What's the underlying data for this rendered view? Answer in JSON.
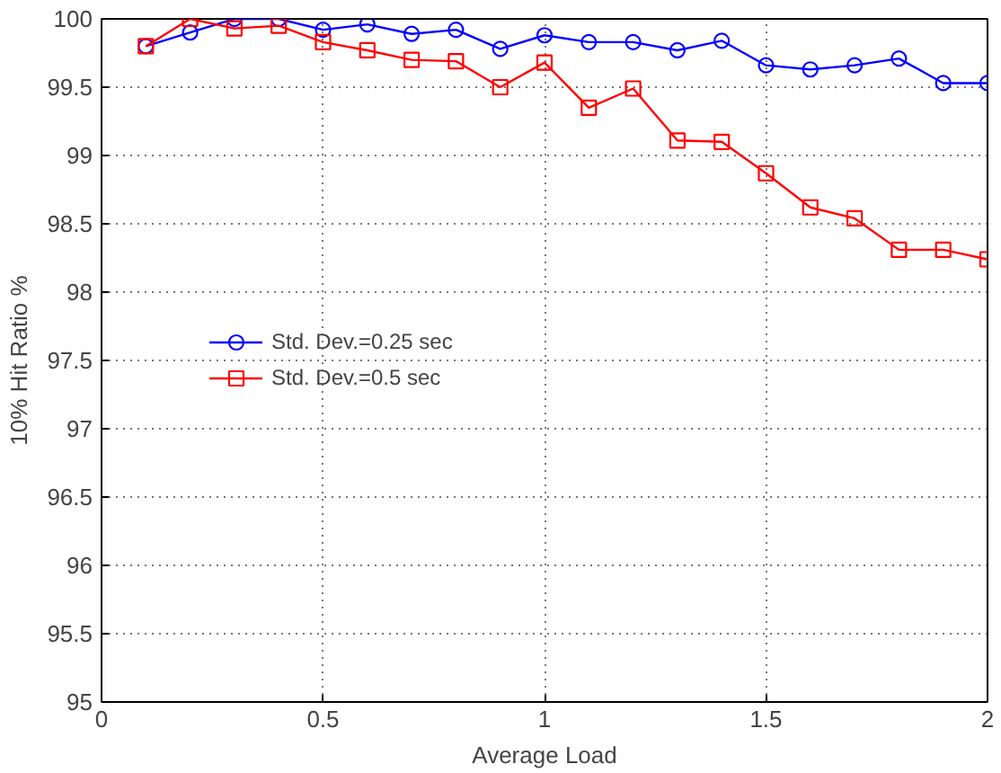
{
  "chart_data": {
    "type": "line",
    "xlabel": "Average Load",
    "ylabel": "10% Hit Ratio %",
    "x": [
      0.1,
      0.2,
      0.3,
      0.4,
      0.5,
      0.6,
      0.7,
      0.8,
      0.9,
      1.0,
      1.1,
      1.2,
      1.3,
      1.4,
      1.5,
      1.6,
      1.7,
      1.8,
      1.9,
      2.0
    ],
    "series": [
      {
        "name": "Std. Dev.=0.25 sec",
        "color": "#0000ff",
        "marker": "circle",
        "values": [
          99.8,
          99.9,
          100,
          100,
          99.92,
          99.96,
          99.89,
          99.92,
          99.78,
          99.88,
          99.83,
          99.83,
          99.77,
          99.84,
          99.66,
          99.63,
          99.66,
          99.71,
          99.53,
          99.53
        ]
      },
      {
        "name": "Std. Dev.=0.5 sec",
        "color": "#ff0000",
        "marker": "square",
        "values": [
          99.8,
          100,
          99.93,
          99.95,
          99.83,
          99.77,
          99.7,
          99.69,
          99.5,
          99.68,
          99.35,
          99.49,
          99.11,
          99.1,
          98.87,
          98.62,
          98.54,
          98.31,
          98.31,
          98.24
        ]
      }
    ],
    "xlim": [
      0,
      2
    ],
    "xticks": [
      0,
      0.5,
      1,
      1.5,
      2
    ],
    "ylim": [
      95,
      100
    ],
    "yticks": [
      95,
      95.5,
      96,
      96.5,
      97,
      97.5,
      98,
      98.5,
      99,
      99.5,
      100
    ],
    "grid": true,
    "legend": "left",
    "line_style": "solid"
  }
}
